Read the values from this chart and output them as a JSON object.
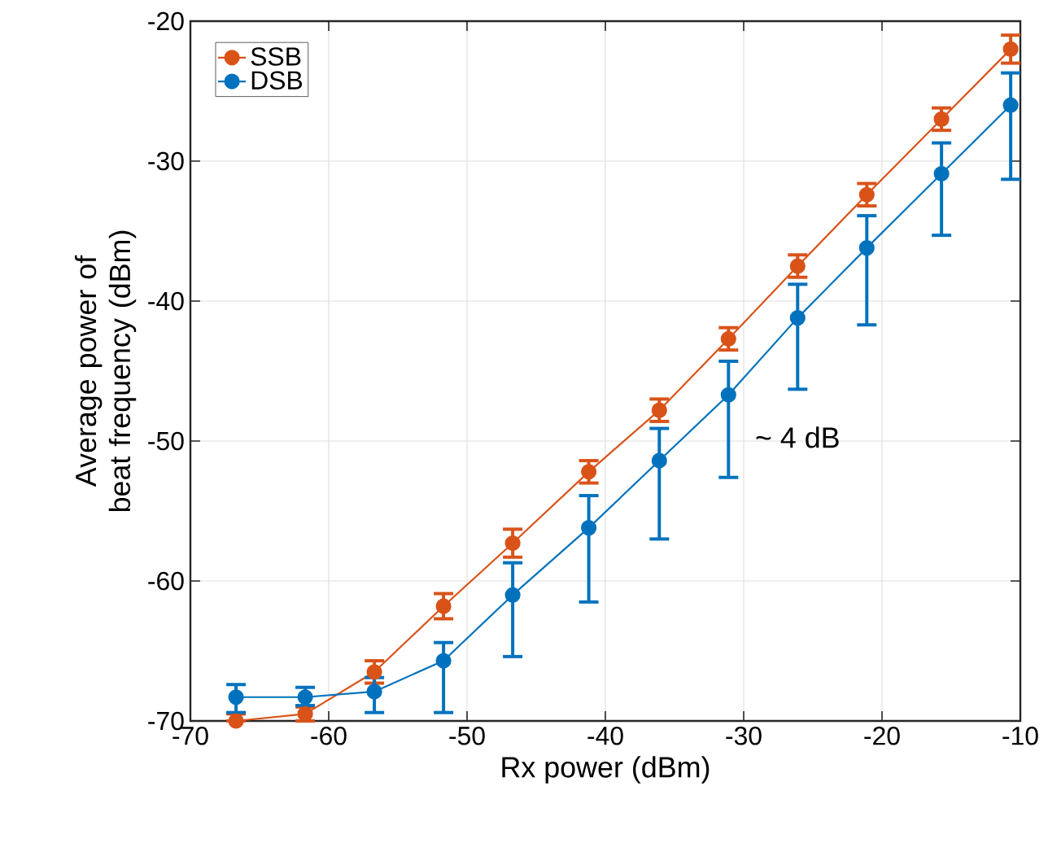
{
  "chart_data": {
    "type": "line",
    "xlabel": "Rx power (dBm)",
    "ylabel": "Average power of beat frequency (dBm)",
    "xlim": [
      -70,
      -10
    ],
    "xticks": [
      -70,
      -60,
      -50,
      -40,
      -30,
      -20,
      -10
    ],
    "ylim": [
      -70,
      -20
    ],
    "yticks": [
      -70,
      -60,
      -50,
      -40,
      -30,
      -20
    ],
    "grid": true,
    "legend": "top left",
    "series": [
      {
        "name": "SSB",
        "color": "#d95319",
        "marker": "circle",
        "x": [
          -66.7,
          -61.7,
          -56.7,
          -51.7,
          -46.7,
          -41.2,
          -36.1,
          -31.1,
          -26.1,
          -21.1,
          -15.7,
          -10.7
        ],
        "values": [
          -70.0,
          -69.5,
          -66.5,
          -61.8,
          -57.3,
          -52.2,
          -47.8,
          -42.7,
          -37.5,
          -32.4,
          -27.0,
          -22.0
        ],
        "errors": [
          [
            -70.0,
            -69.5
          ],
          0.5,
          0.8,
          0.9,
          1.0,
          0.8,
          0.8,
          0.8,
          0.8,
          0.8,
          0.8,
          1.0
        ]
      },
      {
        "name": "DSB",
        "color": "#0072bd",
        "marker": "circle",
        "x": [
          -66.7,
          -61.7,
          -56.7,
          -51.7,
          -46.7,
          -41.2,
          -36.1,
          -31.1,
          -26.1,
          -21.1,
          -15.7,
          -10.7
        ],
        "values": [
          -68.3,
          -68.3,
          -67.9,
          -65.7,
          -61.0,
          -56.2,
          -51.4,
          -46.7,
          -41.2,
          -36.2,
          -30.9,
          -26.0
        ],
        "errors": [
          [
            -69.4,
            -67.4
          ],
          [
            -68.9,
            -67.6
          ],
          [
            -69.4,
            -66.9
          ],
          [
            -69.4,
            -64.4
          ],
          [
            -65.4,
            -58.7
          ],
          [
            -61.5,
            -53.9
          ],
          [
            -57.0,
            -49.1
          ],
          [
            -52.6,
            -44.3
          ],
          [
            -46.3,
            -38.8
          ],
          [
            -41.7,
            -33.9
          ],
          [
            -35.3,
            -28.7
          ],
          [
            -31.3,
            -23.7
          ]
        ]
      }
    ],
    "annotations": [
      {
        "text": "~ 4 dB",
        "x": -34.3,
        "y": -49.5
      }
    ]
  }
}
